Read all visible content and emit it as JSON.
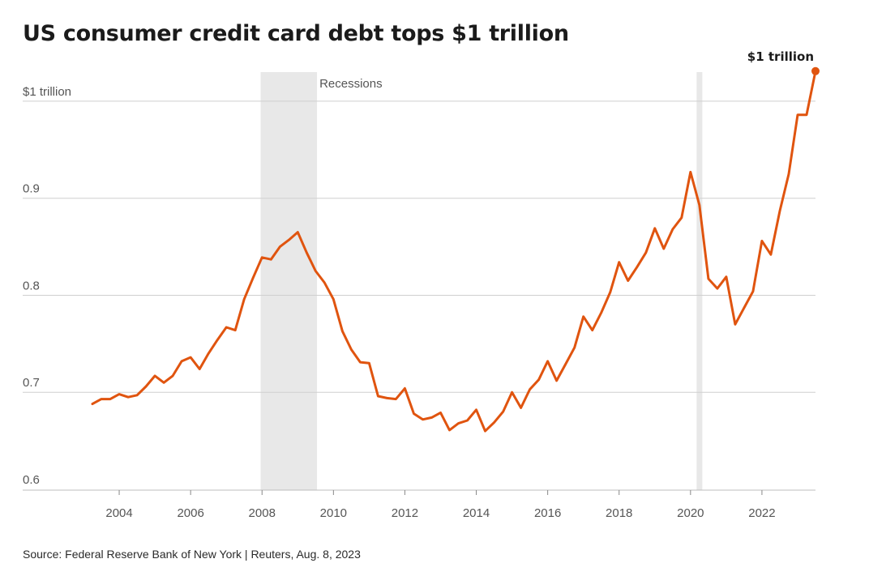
{
  "title": "US consumer credit card debt tops $1 trillion",
  "source": "Source: Federal Reserve Bank of New York | Reuters, Aug. 8, 2023",
  "chart_data": {
    "type": "line",
    "title": "US consumer credit card debt tops $1 trillion",
    "xlabel": "",
    "ylabel": "",
    "xlim": [
      2003.0,
      2023.5
    ],
    "ylim": [
      0.6,
      1.03
    ],
    "x_ticks": [
      2004,
      2006,
      2008,
      2010,
      2012,
      2014,
      2016,
      2018,
      2020,
      2022
    ],
    "x_tick_labels": [
      "2004",
      "2006",
      "2008",
      "2010",
      "2012",
      "2014",
      "2016",
      "2018",
      "2020",
      "2022"
    ],
    "y_ticks": [
      0.6,
      0.7,
      0.8,
      0.9,
      1.0
    ],
    "y_tick_labels": [
      "0.6",
      "0.7",
      "0.8",
      "0.9",
      "$1 trillion"
    ],
    "grid": true,
    "colors": {
      "line": "#e0540f",
      "grid": "#cfcfcf",
      "recession": "#e8e8e8",
      "text": "#555555"
    },
    "recessions": [
      {
        "start": 2007.96,
        "end": 2009.54
      },
      {
        "start": 2020.17,
        "end": 2020.33
      }
    ],
    "recession_label": "Recessions",
    "end_annotation": "$1 trillion",
    "series": [
      {
        "x": [
          2003.25,
          2003.5,
          2003.75,
          2004.0,
          2004.25,
          2004.5,
          2004.75,
          2005.0,
          2005.25,
          2005.5,
          2005.75,
          2006.0,
          2006.25,
          2006.5,
          2006.75,
          2007.0,
          2007.25,
          2007.5,
          2007.75,
          2008.0,
          2008.25,
          2008.5,
          2008.75,
          2009.0,
          2009.25,
          2009.5,
          2009.75,
          2010.0,
          2010.25,
          2010.5,
          2010.75,
          2011.0,
          2011.25,
          2011.5,
          2011.75,
          2012.0,
          2012.25,
          2012.5,
          2012.75,
          2013.0,
          2013.25,
          2013.5,
          2013.75,
          2014.0,
          2014.25,
          2014.5,
          2014.75,
          2015.0,
          2015.25,
          2015.5,
          2015.75,
          2016.0,
          2016.25,
          2016.5,
          2016.75,
          2017.0,
          2017.25,
          2017.5,
          2017.75,
          2018.0,
          2018.25,
          2018.5,
          2018.75,
          2019.0,
          2019.25,
          2019.5,
          2019.75,
          2020.0,
          2020.25,
          2020.5,
          2020.75,
          2021.0,
          2021.25,
          2021.5,
          2021.75,
          2022.0,
          2022.25,
          2022.5,
          2022.75,
          2023.0,
          2023.25,
          2023.5
        ],
        "y": [
          0.688,
          0.693,
          0.693,
          0.698,
          0.695,
          0.697,
          0.706,
          0.717,
          0.71,
          0.717,
          0.732,
          0.736,
          0.724,
          0.74,
          0.754,
          0.767,
          0.764,
          0.796,
          0.818,
          0.839,
          0.837,
          0.85,
          0.857,
          0.865,
          0.844,
          0.825,
          0.813,
          0.796,
          0.763,
          0.744,
          0.731,
          0.73,
          0.696,
          0.694,
          0.693,
          0.704,
          0.678,
          0.672,
          0.674,
          0.679,
          0.661,
          0.668,
          0.671,
          0.682,
          0.66,
          0.669,
          0.68,
          0.7,
          0.684,
          0.703,
          0.713,
          0.732,
          0.712,
          0.729,
          0.746,
          0.778,
          0.764,
          0.782,
          0.803,
          0.834,
          0.815,
          0.829,
          0.844,
          0.869,
          0.848,
          0.868,
          0.88,
          0.927,
          0.893,
          0.817,
          0.807,
          0.819,
          0.77,
          0.787,
          0.804,
          0.856,
          0.842,
          0.887,
          0.925,
          0.986,
          0.986,
          1.031
        ]
      }
    ]
  }
}
